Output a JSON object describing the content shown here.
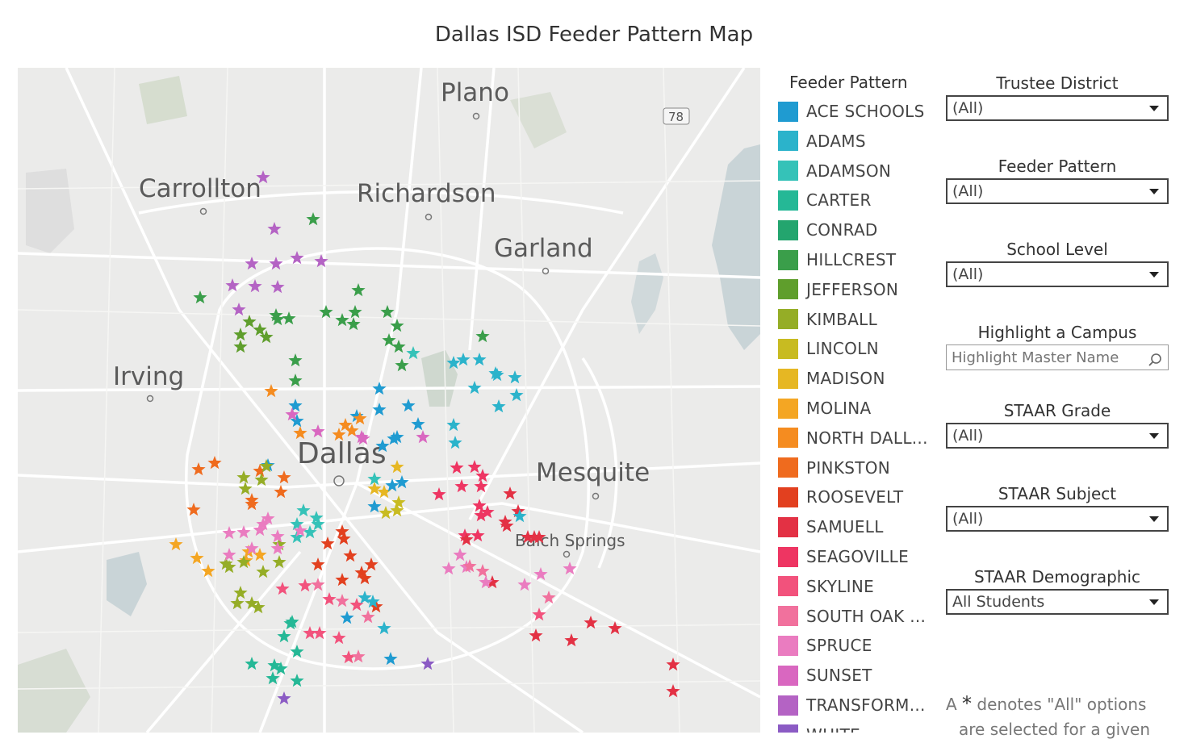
{
  "title": "Dallas ISD Feeder Pattern Map",
  "map": {
    "cities": [
      "Plano",
      "Carrollton",
      "Richardson",
      "Garland",
      "Irving",
      "Dallas",
      "Mesquite",
      "Balch Springs"
    ],
    "highway_shield": "78"
  },
  "legend": {
    "title": "Feeder Pattern",
    "items": [
      {
        "label": "ACE SCHOOLS",
        "color": "#1f9bd1"
      },
      {
        "label": "ADAMS",
        "color": "#2bb3cb"
      },
      {
        "label": "ADAMSON",
        "color": "#35c2b8"
      },
      {
        "label": "CARTER",
        "color": "#25b896"
      },
      {
        "label": "CONRAD",
        "color": "#23a56e"
      },
      {
        "label": "HILLCREST",
        "color": "#3a9e4a"
      },
      {
        "label": "JEFFERSON",
        "color": "#5f9e2c"
      },
      {
        "label": "KIMBALL",
        "color": "#95ad26"
      },
      {
        "label": "LINCOLN",
        "color": "#c8bb21"
      },
      {
        "label": "MADISON",
        "color": "#e6b723"
      },
      {
        "label": "MOLINA",
        "color": "#f4a623"
      },
      {
        "label": "NORTH DALL...",
        "color": "#f58c20"
      },
      {
        "label": "PINKSTON",
        "color": "#ef6b1e"
      },
      {
        "label": "ROOSEVELT",
        "color": "#e2401f"
      },
      {
        "label": "SAMUELL",
        "color": "#e33144"
      },
      {
        "label": "SEAGOVILLE",
        "color": "#ee3562"
      },
      {
        "label": "SKYLINE",
        "color": "#f2527c"
      },
      {
        "label": "SOUTH OAK ...",
        "color": "#f1719d"
      },
      {
        "label": "SPRUCE",
        "color": "#ea7cc0"
      },
      {
        "label": "SUNSET",
        "color": "#d967c0"
      },
      {
        "label": "TRANSFORM...",
        "color": "#b463c4"
      },
      {
        "label": "WHITE",
        "color": "#8b5bc4"
      }
    ]
  },
  "filters": {
    "trustee_district": {
      "title": "Trustee District",
      "value": "(All)"
    },
    "feeder_pattern": {
      "title": "Feeder Pattern",
      "value": "(All)"
    },
    "school_level": {
      "title": "School Level",
      "value": "(All)"
    },
    "highlight_campus": {
      "title": "Highlight a Campus",
      "placeholder": "Highlight Master Name"
    },
    "staar_grade": {
      "title": "STAAR Grade",
      "value": "(All)"
    },
    "staar_subject": {
      "title": "STAAR Subject",
      "value": "(All)"
    },
    "staar_demographic": {
      "title": "STAAR Demographic",
      "value": "All Students"
    }
  },
  "note": {
    "prefix": "A",
    "asterisk": "*",
    "text": "denotes \"All\" options",
    "line2": "are selected for a given"
  }
}
